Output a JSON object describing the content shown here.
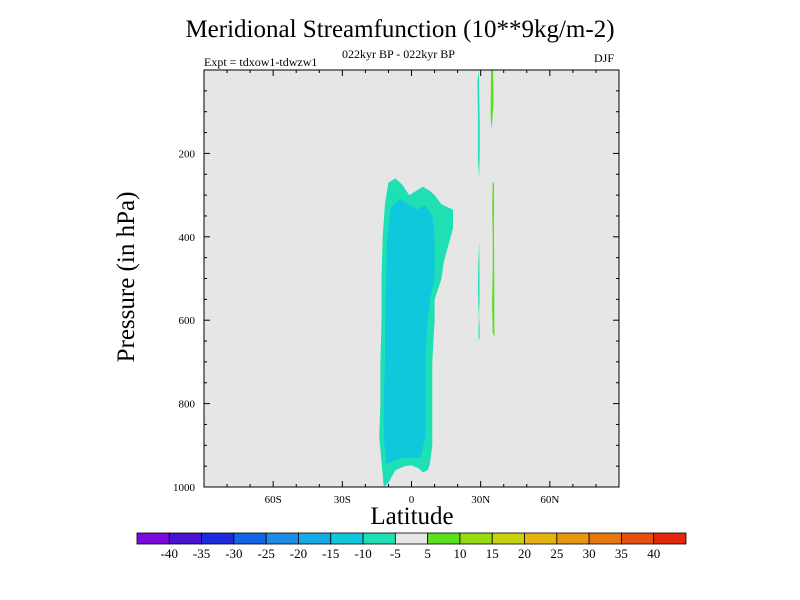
{
  "colors": {
    "background": "#e6e6e6",
    "cyan_dark": "#1ec8de",
    "cyan_mid": "#0fd2dc",
    "teal": "#1ee0b4",
    "green_pos": "#5ae01e"
  },
  "chart_data": {
    "type": "contour",
    "title": "Meridional Streamfunction (10**9kg/m-2)",
    "subtitle_left": "Expt = tdxow1-tdwzw1",
    "subtitle_center": "022kyr BP - 022kyr BP",
    "subtitle_right": "DJF",
    "xlabel": "Latitude",
    "ylabel": "Pressure (in hPa)",
    "xlim": [
      -90,
      90
    ],
    "ylim": [
      1000,
      0
    ],
    "x_ticks": [
      -60,
      -30,
      0,
      30,
      60
    ],
    "x_tick_labels": [
      "60S",
      "30S",
      "0",
      "30N",
      "60N"
    ],
    "y_ticks": [
      200,
      400,
      600,
      800,
      1000
    ],
    "y_tick_labels": [
      "200",
      "400",
      "600",
      "800",
      "1000"
    ],
    "levels": [
      -40,
      -35,
      -30,
      -25,
      -20,
      -15,
      -10,
      -5,
      5,
      10,
      15,
      20,
      25,
      30,
      35,
      40
    ],
    "level_labels": [
      "-40",
      "-35",
      "-30",
      "-25",
      "-20",
      "-15",
      "-10",
      "-5",
      "5",
      "10",
      "15",
      "20",
      "25",
      "30",
      "35",
      "40"
    ],
    "colorbar_colors": [
      "#7a0ade",
      "#4a12d2",
      "#1e28dc",
      "#1464e6",
      "#1e8ce6",
      "#14aae6",
      "#0fc8dc",
      "#1ee0b4",
      "#e6e6e6",
      "#5ae01e",
      "#96dc0f",
      "#c8d20f",
      "#e6b40f",
      "#e6960f",
      "#e6780f",
      "#e6500f",
      "#e6280a"
    ],
    "regions": [
      {
        "value": -7.5,
        "points": [
          [
            -12,
            1000
          ],
          [
            -13,
            940
          ],
          [
            -14,
            880
          ],
          [
            -13.5,
            800
          ],
          [
            -13.5,
            700
          ],
          [
            -13,
            600
          ],
          [
            -13,
            500
          ],
          [
            -12.5,
            400
          ],
          [
            -11.5,
            320
          ],
          [
            -10,
            270
          ],
          [
            -7,
            260
          ],
          [
            -4,
            275
          ],
          [
            -1,
            300
          ],
          [
            2,
            290
          ],
          [
            5,
            280
          ],
          [
            8,
            290
          ],
          [
            10,
            300
          ],
          [
            13,
            322
          ],
          [
            16,
            330
          ],
          [
            18,
            335
          ],
          [
            18,
            380
          ],
          [
            16,
            420
          ],
          [
            14,
            460
          ],
          [
            13,
            500
          ],
          [
            10,
            550
          ],
          [
            10,
            600
          ],
          [
            9,
            700
          ],
          [
            9,
            800
          ],
          [
            9,
            900
          ],
          [
            8,
            945
          ],
          [
            7,
            960
          ],
          [
            5,
            965
          ],
          [
            3,
            955
          ],
          [
            0,
            948
          ],
          [
            -3,
            950
          ],
          [
            -7,
            960
          ],
          [
            -10,
            990
          ]
        ]
      },
      {
        "value": -12.5,
        "points": [
          [
            -11,
            945
          ],
          [
            -12,
            880
          ],
          [
            -12,
            800
          ],
          [
            -11.5,
            700
          ],
          [
            -11.5,
            600
          ],
          [
            -11,
            500
          ],
          [
            -10.5,
            400
          ],
          [
            -9,
            330
          ],
          [
            -5,
            310
          ],
          [
            -2,
            320
          ],
          [
            2,
            335
          ],
          [
            6,
            325
          ],
          [
            9,
            350
          ],
          [
            10,
            400
          ],
          [
            10,
            500
          ],
          [
            8,
            550
          ],
          [
            7,
            600
          ],
          [
            6,
            700
          ],
          [
            6,
            800
          ],
          [
            6,
            880
          ],
          [
            4,
            930
          ],
          [
            1,
            930
          ],
          [
            -3,
            930
          ],
          [
            -7,
            935
          ]
        ]
      },
      {
        "value": -15,
        "points": [
          [
            -5,
            890
          ],
          [
            -8,
            840
          ],
          [
            -9,
            780
          ],
          [
            -8,
            680
          ],
          [
            -7,
            590
          ],
          [
            -4,
            570
          ],
          [
            -2,
            600
          ],
          [
            -1,
            700
          ],
          [
            -1,
            800
          ],
          [
            -3,
            870
          ]
        ]
      },
      {
        "value": 7.5,
        "points": [
          [
            35.4,
            0
          ],
          [
            35.6,
            70
          ],
          [
            35.2,
            110
          ],
          [
            34.8,
            140
          ],
          [
            34.5,
            130
          ],
          [
            34.3,
            100
          ],
          [
            34.4,
            60
          ],
          [
            34.5,
            0
          ]
        ]
      },
      {
        "value": 7.5,
        "points": [
          [
            35.8,
            270
          ],
          [
            35.8,
            400
          ],
          [
            35.9,
            500
          ],
          [
            35.9,
            600
          ],
          [
            36,
            640
          ],
          [
            35.2,
            630
          ],
          [
            34.9,
            560
          ],
          [
            35.2,
            480
          ],
          [
            35.2,
            400
          ],
          [
            35,
            330
          ],
          [
            35.2,
            270
          ]
        ]
      },
      {
        "value": -7.5,
        "points": [
          [
            29.2,
            0
          ],
          [
            29.6,
            120
          ],
          [
            29.6,
            200
          ],
          [
            29.3,
            260
          ],
          [
            28.8,
            210
          ],
          [
            28.8,
            100
          ],
          [
            28.6,
            30
          ]
        ]
      },
      {
        "value": -7.5,
        "points": [
          [
            29.3,
            410
          ],
          [
            29.5,
            480
          ],
          [
            29.5,
            560
          ],
          [
            29.2,
            600
          ],
          [
            28.8,
            520
          ],
          [
            29,
            460
          ]
        ]
      },
      {
        "value": -7.5,
        "points": [
          [
            29.4,
            590
          ],
          [
            29.6,
            640
          ],
          [
            29.2,
            650
          ],
          [
            29,
            620
          ]
        ]
      }
    ]
  }
}
